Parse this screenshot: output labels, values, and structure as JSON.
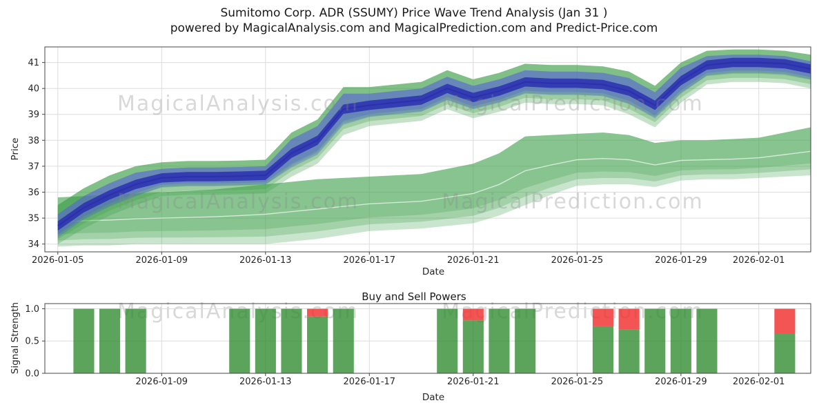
{
  "title": {
    "line1": "Sumitomo Corp. ADR (SSUMY) Price Wave Trend Analysis (Jan 31 )",
    "line2": "powered by MagicalAnalysis.com and MagicalPrediction.com and Predict-Price.com"
  },
  "watermarks": {
    "left": "MagicalAnalysis.com",
    "right": "MagicalPrediction.com"
  },
  "colors": {
    "green_band": "#3fa04a",
    "blue_band": "#5864d8",
    "blue_core": "#2a2fae",
    "bar_green": "#2e8b2e",
    "bar_red": "#f03030",
    "grid": "#dcdcdc",
    "axis": "#444444",
    "tick_text": "#262626",
    "watermark": "#8a8a8a"
  },
  "chart_data": [
    {
      "type": "area",
      "name": "price_wave_trend",
      "xlabel": "Date",
      "ylabel": "Price",
      "x_unit": "days since 2026-01-05",
      "xmax": 29.5,
      "ylim": [
        33.7,
        41.6
      ],
      "yticks": [
        34,
        35,
        36,
        37,
        38,
        39,
        40,
        41
      ],
      "xticks": [
        {
          "day": 0,
          "label": "2026-01-05"
        },
        {
          "day": 4,
          "label": "2026-01-09"
        },
        {
          "day": 8,
          "label": "2026-01-13"
        },
        {
          "day": 12,
          "label": "2026-01-17"
        },
        {
          "day": 16,
          "label": "2026-01-21"
        },
        {
          "day": 20,
          "label": "2026-01-25"
        },
        {
          "day": 24,
          "label": "2026-01-29"
        },
        {
          "day": 27,
          "label": "2026-02-01"
        }
      ],
      "bands": {
        "upper_green": {
          "low": [
            34.0,
            34.6,
            35.1,
            35.5,
            35.85,
            35.9,
            35.9,
            35.92,
            35.95,
            36.6,
            37.1,
            38.2,
            38.55,
            38.65,
            38.75,
            39.2,
            38.85,
            39.1,
            39.45,
            39.4,
            39.4,
            39.35,
            39.0,
            38.5,
            39.45,
            40.15,
            40.25,
            40.25,
            40.2,
            40.0
          ],
          "high": [
            35.5,
            36.15,
            36.65,
            37.0,
            37.15,
            37.2,
            37.2,
            37.22,
            37.25,
            38.3,
            38.8,
            40.05,
            40.05,
            40.15,
            40.25,
            40.7,
            40.35,
            40.6,
            40.95,
            40.9,
            40.9,
            40.85,
            40.65,
            40.1,
            41.0,
            41.45,
            41.5,
            41.5,
            41.45,
            41.3
          ]
        },
        "blue": {
          "low": [
            34.25,
            34.95,
            35.45,
            35.85,
            36.2,
            36.25,
            36.25,
            36.27,
            36.3,
            36.95,
            37.45,
            38.6,
            38.9,
            39.0,
            39.1,
            39.55,
            39.2,
            39.45,
            39.8,
            39.75,
            39.75,
            39.7,
            39.4,
            38.85,
            39.8,
            40.5,
            40.6,
            40.6,
            40.55,
            40.35
          ],
          "high": [
            35.15,
            35.85,
            36.35,
            36.75,
            36.9,
            36.95,
            36.95,
            36.97,
            37.0,
            38.05,
            38.55,
            39.8,
            39.8,
            39.9,
            40.0,
            40.45,
            40.1,
            40.35,
            40.7,
            40.65,
            40.65,
            40.6,
            40.4,
            39.85,
            40.8,
            41.25,
            41.3,
            41.3,
            41.25,
            41.05
          ]
        },
        "blue_core_center": [
          34.7,
          35.4,
          35.9,
          36.3,
          36.55,
          36.6,
          36.6,
          36.62,
          36.65,
          37.5,
          38.0,
          39.2,
          39.35,
          39.45,
          39.55,
          40.0,
          39.65,
          39.9,
          40.25,
          40.2,
          40.2,
          40.15,
          39.9,
          39.35,
          40.3,
          40.9,
          41.0,
          41.0,
          40.95,
          40.75
        ],
        "lower_green": {
          "low": [
            33.9,
            33.95,
            33.95,
            34.0,
            34.0,
            34.0,
            34.0,
            34.0,
            34.0,
            34.1,
            34.2,
            34.35,
            34.5,
            34.55,
            34.6,
            34.7,
            34.8,
            35.1,
            35.5,
            35.9,
            36.25,
            36.3,
            36.3,
            36.2,
            36.45,
            36.5,
            36.5,
            36.55,
            36.6,
            36.65
          ],
          "high": [
            35.8,
            35.85,
            35.9,
            35.95,
            36.0,
            36.05,
            36.1,
            36.2,
            36.3,
            36.4,
            36.5,
            36.55,
            36.6,
            36.65,
            36.7,
            36.9,
            37.1,
            37.5,
            38.15,
            38.2,
            38.25,
            38.3,
            38.2,
            37.9,
            38.0,
            38.0,
            38.05,
            38.1,
            38.3,
            38.5
          ]
        }
      }
    },
    {
      "type": "bar",
      "name": "buy_sell_powers",
      "title": "Buy and Sell Powers",
      "xlabel": "Date",
      "ylabel": "Signal Strength",
      "xmax": 29.5,
      "ylim": [
        0,
        1.08
      ],
      "yticks": [
        0.0,
        0.5,
        1.0
      ],
      "ytick_labels": [
        "0.0",
        "0.5",
        "1.0"
      ],
      "xticks": [
        {
          "day": 4,
          "label": "2026-01-09"
        },
        {
          "day": 8,
          "label": "2026-01-13"
        },
        {
          "day": 12,
          "label": "2026-01-17"
        },
        {
          "day": 16,
          "label": "2026-01-21"
        },
        {
          "day": 20,
          "label": "2026-01-25"
        },
        {
          "day": 24,
          "label": "2026-01-29"
        },
        {
          "day": 27,
          "label": "2026-02-01"
        }
      ],
      "bars": [
        {
          "day": 1,
          "date": "2026-01-06",
          "green": 1.0,
          "red": 0.0
        },
        {
          "day": 2,
          "date": "2026-01-07",
          "green": 1.0,
          "red": 0.0
        },
        {
          "day": 3,
          "date": "2026-01-08",
          "green": 1.0,
          "red": 0.0
        },
        {
          "day": 7,
          "date": "2026-01-12",
          "green": 1.0,
          "red": 0.0
        },
        {
          "day": 8,
          "date": "2026-01-13",
          "green": 1.0,
          "red": 0.0
        },
        {
          "day": 9,
          "date": "2026-01-14",
          "green": 1.0,
          "red": 0.0
        },
        {
          "day": 10,
          "date": "2026-01-15",
          "green": 0.88,
          "red": 0.12
        },
        {
          "day": 11,
          "date": "2026-01-16",
          "green": 1.0,
          "red": 0.0
        },
        {
          "day": 15,
          "date": "2026-01-20",
          "green": 1.0,
          "red": 0.0
        },
        {
          "day": 16,
          "date": "2026-01-21",
          "green": 0.82,
          "red": 0.18
        },
        {
          "day": 17,
          "date": "2026-01-22",
          "green": 1.0,
          "red": 0.0
        },
        {
          "day": 18,
          "date": "2026-01-23",
          "green": 1.0,
          "red": 0.0
        },
        {
          "day": 21,
          "date": "2026-01-26",
          "green": 0.73,
          "red": 0.27
        },
        {
          "day": 22,
          "date": "2026-01-27",
          "green": 0.68,
          "red": 0.32
        },
        {
          "day": 23,
          "date": "2026-01-28",
          "green": 1.0,
          "red": 0.0
        },
        {
          "day": 24,
          "date": "2026-01-29",
          "green": 1.0,
          "red": 0.0
        },
        {
          "day": 25,
          "date": "2026-01-30",
          "green": 1.0,
          "red": 0.0
        },
        {
          "day": 28,
          "date": "2026-02-02",
          "green": 0.62,
          "red": 0.38
        }
      ]
    }
  ]
}
